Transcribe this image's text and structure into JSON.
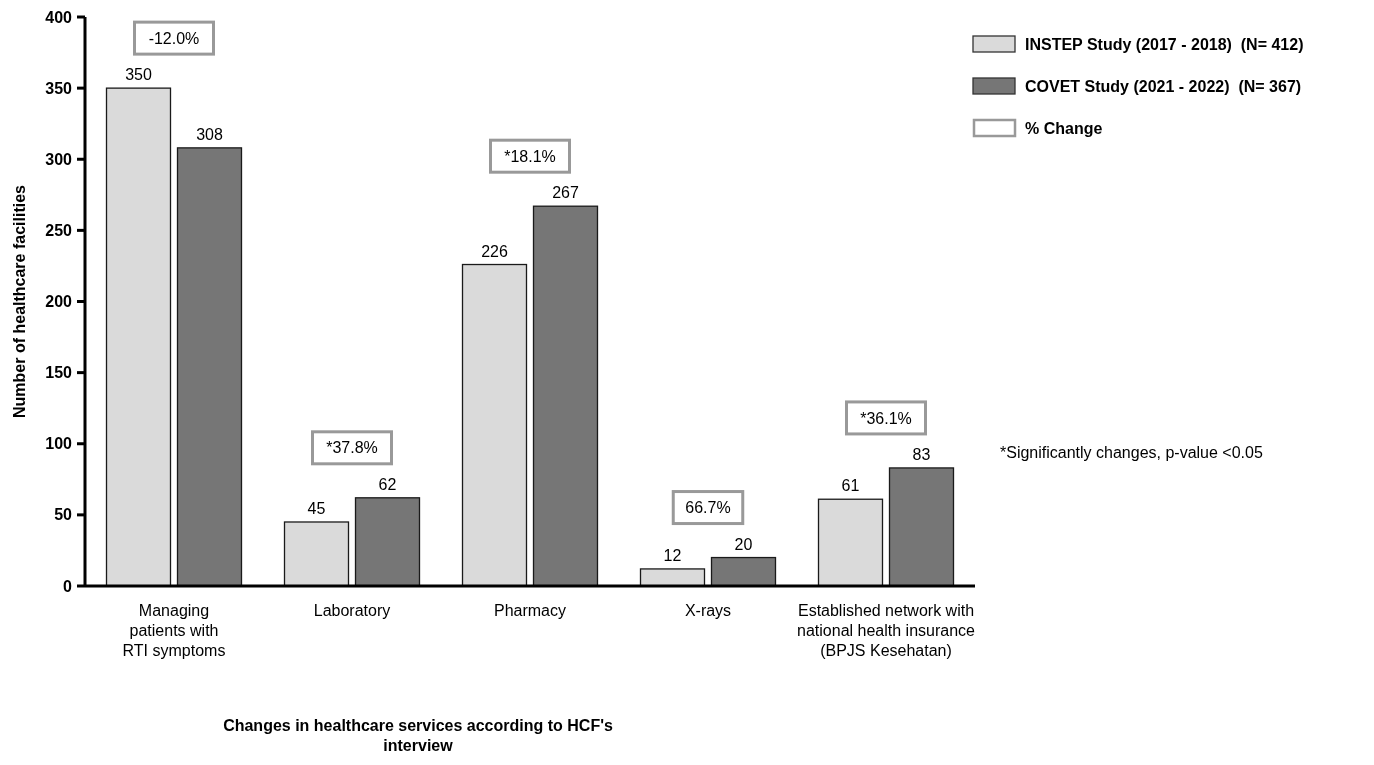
{
  "chart_data": {
    "type": "bar",
    "ylabel": "Number of healthcare facilities",
    "xlabel": "Changes in healthcare services according to HCF's interview",
    "categories": [
      "Managing\npatients with\nRTI symptoms",
      "Laboratory",
      "Pharmacy",
      "X-rays",
      "Established network with\nnational health insurance\n(BPJS Kesehatan)"
    ],
    "series": [
      {
        "name": "INSTEP Study (2017 - 2018)  (N= 412)",
        "color": "#dadada",
        "values": [
          350,
          45,
          226,
          12,
          61
        ]
      },
      {
        "name": "COVET Study (2021 - 2022)  (N= 367)",
        "color": "#767676",
        "values": [
          308,
          62,
          267,
          20,
          83
        ]
      }
    ],
    "ylim": [
      0,
      400
    ],
    "yticks": [
      0,
      50,
      100,
      150,
      200,
      250,
      300,
      350,
      400
    ],
    "data_labels": true,
    "legend": "top right",
    "grid": false,
    "annotations": [
      "-12.0%",
      "*37.8%",
      "*18.1%",
      "66.7%",
      "*36.1%",
      "% Change",
      "*Significantly changes, p-value <0.05"
    ]
  }
}
